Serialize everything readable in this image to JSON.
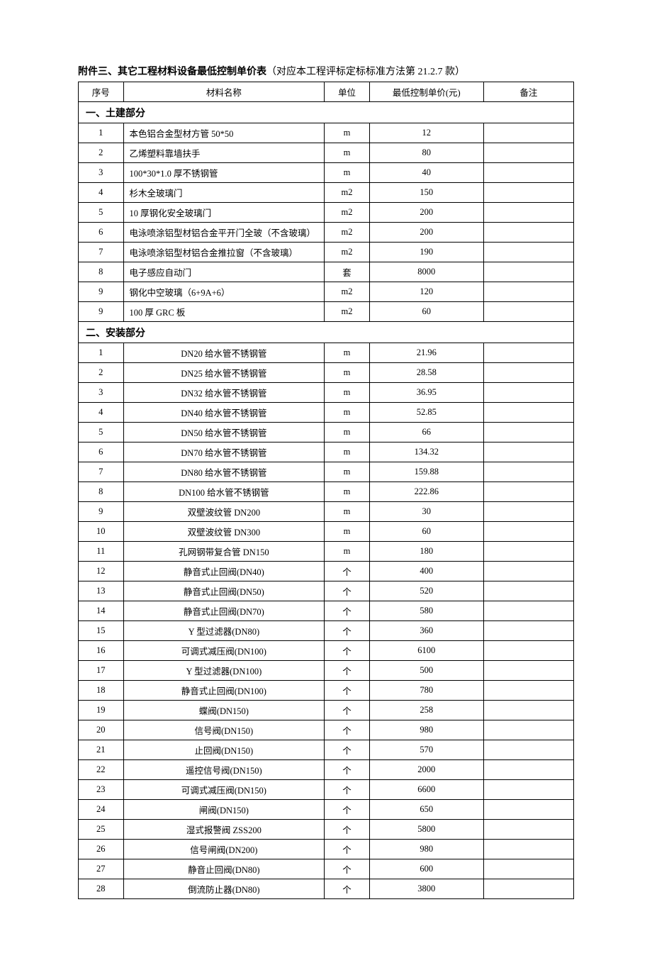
{
  "title": {
    "bold": "附件三、其它工程材料设备最低控制单价表",
    "note": "（对应本工程评标定标标准方法第 21.2.7 款）"
  },
  "columns": {
    "seq": "序号",
    "name": "材料名称",
    "unit": "单位",
    "price": "最低控制单价(元)",
    "note": "备注"
  },
  "sections": [
    {
      "header": "一、土建部分",
      "alignName": "left",
      "rows": [
        {
          "seq": "1",
          "name": "本色铝合金型材方管 50*50",
          "unit": "m",
          "price": "12",
          "note": ""
        },
        {
          "seq": "2",
          "name": "乙烯塑料靠墙扶手",
          "unit": "m",
          "price": "80",
          "note": ""
        },
        {
          "seq": "3",
          "name": "100*30*1.0 厚不锈钢管",
          "unit": "m",
          "price": "40",
          "note": ""
        },
        {
          "seq": "4",
          "name": "杉木全玻璃门",
          "unit": "m2",
          "price": "150",
          "note": ""
        },
        {
          "seq": "5",
          "name": "10 厚钢化安全玻璃门",
          "unit": "m2",
          "price": "200",
          "note": ""
        },
        {
          "seq": "6",
          "name": "电泳喷涂铝型材铝合金平开门全玻（不含玻璃）",
          "unit": "m2",
          "price": "200",
          "note": ""
        },
        {
          "seq": "7",
          "name": "电泳喷涂铝型材铝合金推拉窗（不含玻璃）",
          "unit": "m2",
          "price": "190",
          "note": ""
        },
        {
          "seq": "8",
          "name": "电子感应自动门",
          "unit": "套",
          "price": "8000",
          "note": ""
        },
        {
          "seq": "9",
          "name": "钢化中空玻璃（6+9A+6）",
          "unit": "m2",
          "price": "120",
          "note": ""
        },
        {
          "seq": "9",
          "name": "100 厚 GRC 板",
          "unit": "m2",
          "price": "60",
          "note": ""
        }
      ]
    },
    {
      "header": "二、安装部分",
      "alignName": "center",
      "rows": [
        {
          "seq": "1",
          "name": "DN20 给水管不锈钢管",
          "unit": "m",
          "price": "21.96",
          "note": ""
        },
        {
          "seq": "2",
          "name": "DN25 给水管不锈钢管",
          "unit": "m",
          "price": "28.58",
          "note": ""
        },
        {
          "seq": "3",
          "name": "DN32 给水管不锈钢管",
          "unit": "m",
          "price": "36.95",
          "note": ""
        },
        {
          "seq": "4",
          "name": "DN40 给水管不锈钢管",
          "unit": "m",
          "price": "52.85",
          "note": ""
        },
        {
          "seq": "5",
          "name": "DN50 给水管不锈钢管",
          "unit": "m",
          "price": "66",
          "note": ""
        },
        {
          "seq": "6",
          "name": "DN70 给水管不锈钢管",
          "unit": "m",
          "price": "134.32",
          "note": ""
        },
        {
          "seq": "7",
          "name": "DN80 给水管不锈钢管",
          "unit": "m",
          "price": "159.88",
          "note": ""
        },
        {
          "seq": "8",
          "name": "DN100 给水管不锈钢管",
          "unit": "m",
          "price": "222.86",
          "note": ""
        },
        {
          "seq": "9",
          "name": "双壁波纹管 DN200",
          "unit": "m",
          "price": "30",
          "note": ""
        },
        {
          "seq": "10",
          "name": "双壁波纹管 DN300",
          "unit": "m",
          "price": "60",
          "note": ""
        },
        {
          "seq": "11",
          "name": "孔网钢带复合管 DN150",
          "unit": "m",
          "price": "180",
          "note": ""
        },
        {
          "seq": "12",
          "name": "静音式止回阀(DN40)",
          "unit": "个",
          "price": "400",
          "note": ""
        },
        {
          "seq": "13",
          "name": "静音式止回阀(DN50)",
          "unit": "个",
          "price": "520",
          "note": ""
        },
        {
          "seq": "14",
          "name": "静音式止回阀(DN70)",
          "unit": "个",
          "price": "580",
          "note": ""
        },
        {
          "seq": "15",
          "name": "Y 型过滤器(DN80)",
          "unit": "个",
          "price": "360",
          "note": ""
        },
        {
          "seq": "16",
          "name": "可调式减压阀(DN100)",
          "unit": "个",
          "price": "6100",
          "note": ""
        },
        {
          "seq": "17",
          "name": "Y 型过滤器(DN100)",
          "unit": "个",
          "price": "500",
          "note": ""
        },
        {
          "seq": "18",
          "name": "静音式止回阀(DN100)",
          "unit": "个",
          "price": "780",
          "note": ""
        },
        {
          "seq": "19",
          "name": "蝶阀(DN150)",
          "unit": "个",
          "price": "258",
          "note": ""
        },
        {
          "seq": "20",
          "name": "信号阀(DN150)",
          "unit": "个",
          "price": "980",
          "note": ""
        },
        {
          "seq": "21",
          "name": "止回阀(DN150)",
          "unit": "个",
          "price": "570",
          "note": ""
        },
        {
          "seq": "22",
          "name": "遥控信号阀(DN150)",
          "unit": "个",
          "price": "2000",
          "note": ""
        },
        {
          "seq": "23",
          "name": "可调式减压阀(DN150)",
          "unit": "个",
          "price": "6600",
          "note": ""
        },
        {
          "seq": "24",
          "name": "闸阀(DN150)",
          "unit": "个",
          "price": "650",
          "note": ""
        },
        {
          "seq": "25",
          "name": "湿式报警阀  ZSS200",
          "unit": "个",
          "price": "5800",
          "note": ""
        },
        {
          "seq": "26",
          "name": "信号闸阀(DN200)",
          "unit": "个",
          "price": "980",
          "note": ""
        },
        {
          "seq": "27",
          "name": "静音止回阀(DN80)",
          "unit": "个",
          "price": "600",
          "note": ""
        },
        {
          "seq": "28",
          "name": "倒流防止器(DN80)",
          "unit": "个",
          "price": "3800",
          "note": ""
        }
      ]
    }
  ]
}
